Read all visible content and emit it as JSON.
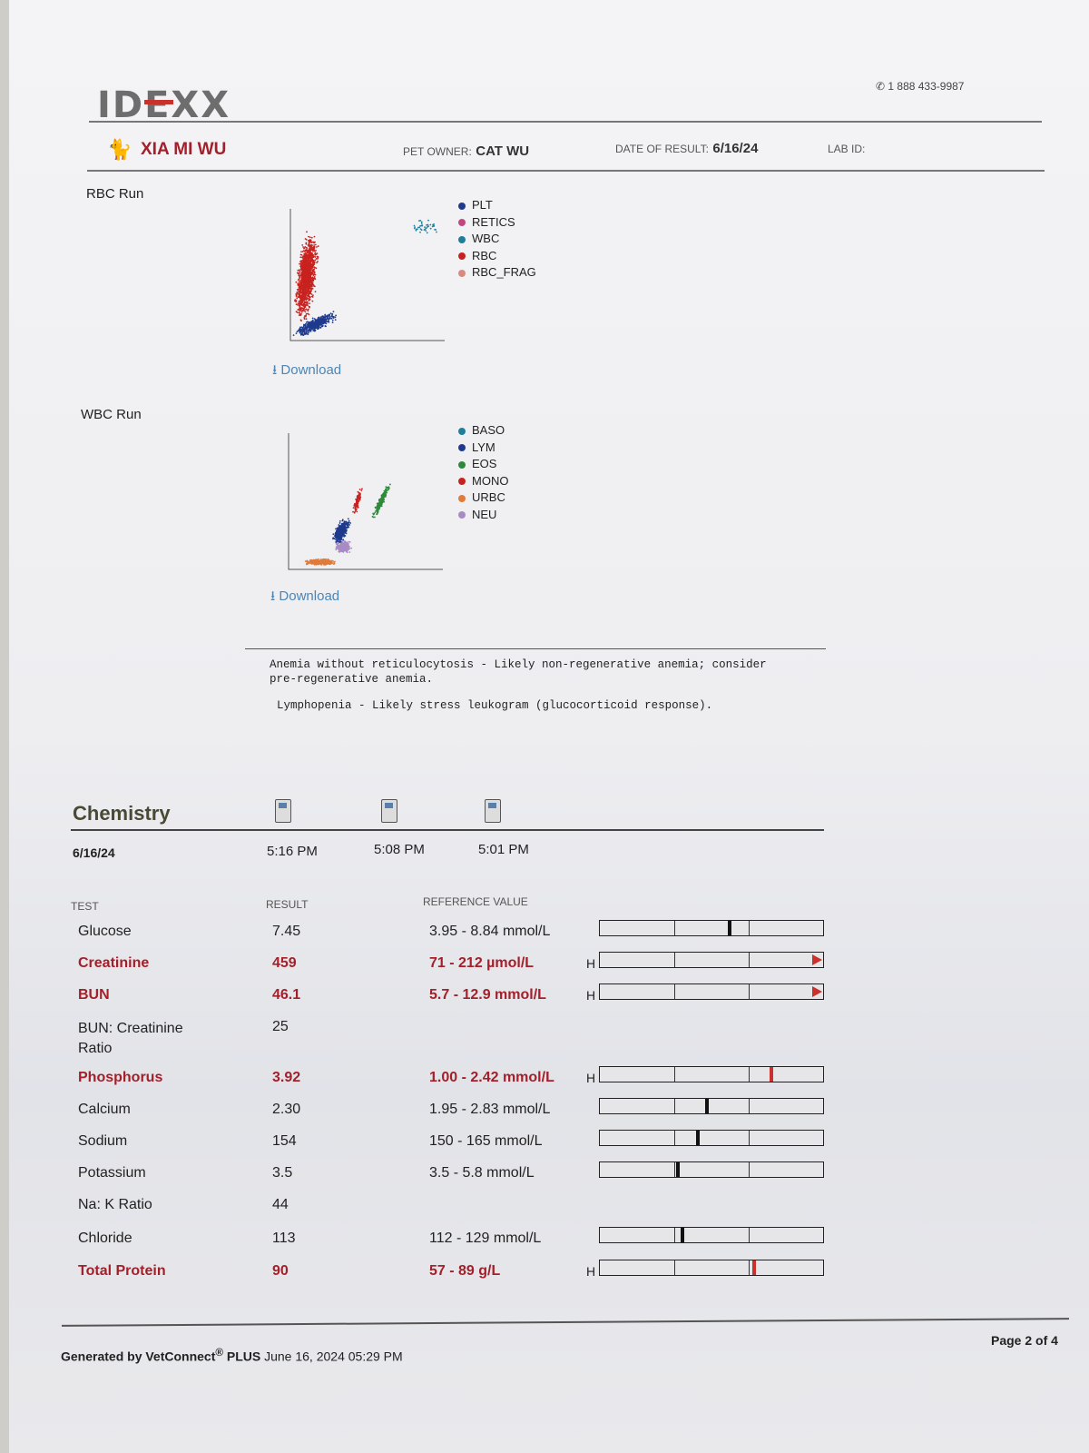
{
  "header": {
    "logo": "IDEXX",
    "phone_icon": "phone-icon",
    "phone": "1 888 433-9987",
    "pet_name": "XIA MI WU",
    "pet_icon": "cat-icon",
    "pet_owner_label": "PET OWNER:",
    "pet_owner": "CAT WU",
    "date_label": "DATE OF RESULT:",
    "date": "6/16/24",
    "lab_id_label": "LAB ID:"
  },
  "rbc_run": {
    "title": "RBC Run",
    "download": "Download",
    "legend": [
      {
        "label": "PLT",
        "color": "#1f3a8c"
      },
      {
        "label": "RETICS",
        "color": "#c2477e"
      },
      {
        "label": "WBC",
        "color": "#1f7f9a"
      },
      {
        "label": "RBC",
        "color": "#c8221f"
      },
      {
        "label": "RBC_FRAG",
        "color": "#d98a7e"
      }
    ]
  },
  "wbc_run": {
    "title": "WBC Run",
    "download": "Download",
    "legend": [
      {
        "label": "BASO",
        "color": "#1f7f9a"
      },
      {
        "label": "LYM",
        "color": "#1f3a8c"
      },
      {
        "label": "EOS",
        "color": "#2e8a3a"
      },
      {
        "label": "MONO",
        "color": "#c8221f"
      },
      {
        "label": "URBC",
        "color": "#e07b3a"
      },
      {
        "label": "NEU",
        "color": "#a98bc4"
      }
    ]
  },
  "interpretation": [
    "Anemia without reticulocytosis - Likely non-regenerative anemia; consider",
    "pre-regenerative anemia.",
    "Lymphopenia - Likely stress leukogram (glucocorticoid response)."
  ],
  "chemistry": {
    "title": "Chemistry",
    "date": "6/16/24",
    "times": [
      "5:16 PM",
      "5:08 PM",
      "5:01 PM"
    ],
    "columns": {
      "test": "TEST",
      "result": "RESULT",
      "reference": "REFERENCE VALUE"
    },
    "rows": [
      {
        "test": "Glucose",
        "result": "7.45",
        "reference": "3.95 - 8.84 mmol/L",
        "flag": "",
        "abnormal": false,
        "level": 0.58
      },
      {
        "test": "Creatinine",
        "result": "459",
        "reference": "71 - 212 µmol/L",
        "flag": "H",
        "abnormal": true,
        "level": "above-scale"
      },
      {
        "test": "BUN",
        "result": "46.1",
        "reference": "5.7 - 12.9 mmol/L",
        "flag": "H",
        "abnormal": true,
        "level": "above-scale"
      },
      {
        "test": "BUN: Creatinine Ratio",
        "result": "25",
        "reference": "",
        "flag": "",
        "abnormal": false,
        "level": null
      },
      {
        "test": "Phosphorus",
        "result": "3.92",
        "reference": "1.00 - 2.42 mmol/L",
        "flag": "H",
        "abnormal": true,
        "level": 0.77
      },
      {
        "test": "Calcium",
        "result": "2.30",
        "reference": "1.95 - 2.83 mmol/L",
        "flag": "",
        "abnormal": false,
        "level": 0.48
      },
      {
        "test": "Sodium",
        "result": "154",
        "reference": "150 - 165 mmol/L",
        "flag": "",
        "abnormal": false,
        "level": 0.44
      },
      {
        "test": "Potassium",
        "result": "3.5",
        "reference": "3.5 - 5.8 mmol/L",
        "flag": "",
        "abnormal": false,
        "level": 0.35
      },
      {
        "test": "Na: K Ratio",
        "result": "44",
        "reference": "",
        "flag": "",
        "abnormal": false,
        "level": null
      },
      {
        "test": "Chloride",
        "result": "113",
        "reference": "112 - 129 mmol/L",
        "flag": "",
        "abnormal": false,
        "level": 0.37
      },
      {
        "test": "Total Protein",
        "result": "90",
        "reference": "57 - 89 g/L",
        "flag": "H",
        "abnormal": true,
        "level": 0.69
      }
    ]
  },
  "footer": {
    "generated": "Generated by VetConnect",
    "reg": "®",
    "plus": "PLUS",
    "datetime": "June 16, 2024 05:29 PM",
    "page": "Page 2 of 4"
  }
}
